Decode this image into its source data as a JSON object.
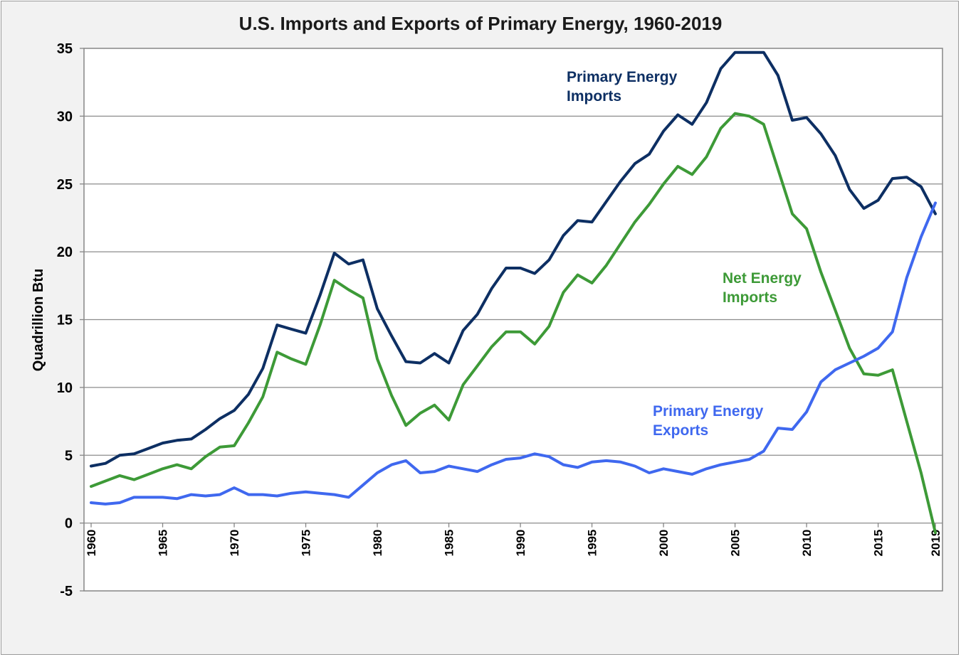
{
  "chart_data": {
    "type": "line",
    "title": "U.S. Imports and Exports of Primary Energy, 1960-2019",
    "xlabel": "",
    "ylabel": "Quadrillion Btu",
    "ylim": [
      -5,
      35
    ],
    "yticks": [
      "-5",
      "0",
      "5",
      "10",
      "15",
      "20",
      "25",
      "30",
      "35"
    ],
    "xlim": [
      1960,
      2019
    ],
    "xticks": [
      "1960",
      "1965",
      "1970",
      "1975",
      "1980",
      "1985",
      "1990",
      "1995",
      "2000",
      "2005",
      "2010",
      "2015",
      "2019"
    ],
    "grid": true,
    "x": [
      1960,
      1961,
      1962,
      1963,
      1964,
      1965,
      1966,
      1967,
      1968,
      1969,
      1970,
      1971,
      1972,
      1973,
      1974,
      1975,
      1976,
      1977,
      1978,
      1979,
      1980,
      1981,
      1982,
      1983,
      1984,
      1985,
      1986,
      1987,
      1988,
      1989,
      1990,
      1991,
      1992,
      1993,
      1994,
      1995,
      1996,
      1997,
      1998,
      1999,
      2000,
      2001,
      2002,
      2003,
      2004,
      2005,
      2006,
      2007,
      2008,
      2009,
      2010,
      2011,
      2012,
      2013,
      2014,
      2015,
      2016,
      2017,
      2018,
      2019
    ],
    "series": [
      {
        "name": "Primary Energy Imports",
        "label_lines": [
          "Primary Energy",
          "Imports"
        ],
        "color": "#0d2f63",
        "values": [
          4.2,
          4.4,
          5.0,
          5.1,
          5.5,
          5.9,
          6.1,
          6.2,
          6.9,
          7.7,
          8.3,
          9.5,
          11.4,
          14.6,
          14.3,
          14.0,
          16.8,
          19.9,
          19.1,
          19.4,
          15.8,
          13.8,
          11.9,
          11.8,
          12.5,
          11.8,
          14.2,
          15.4,
          17.3,
          18.8,
          18.8,
          18.4,
          19.4,
          21.2,
          22.3,
          22.2,
          23.7,
          25.2,
          26.5,
          27.2,
          28.9,
          30.1,
          29.4,
          31.0,
          33.5,
          34.7,
          34.7,
          34.7,
          33.0,
          29.7,
          29.9,
          28.7,
          27.1,
          24.6,
          23.2,
          23.8,
          25.4,
          25.5,
          24.8,
          22.8
        ]
      },
      {
        "name": "Net Energy Imports",
        "label_lines": [
          "Net Energy",
          "Imports"
        ],
        "color": "#3d9a37",
        "values": [
          2.7,
          3.1,
          3.5,
          3.2,
          3.6,
          4.0,
          4.3,
          4.0,
          4.9,
          5.6,
          5.7,
          7.4,
          9.3,
          12.6,
          12.1,
          11.7,
          14.6,
          17.9,
          17.2,
          16.6,
          12.1,
          9.4,
          7.2,
          8.1,
          8.7,
          7.6,
          10.2,
          11.6,
          13.0,
          14.1,
          14.1,
          13.2,
          14.5,
          17.0,
          18.3,
          17.7,
          19.0,
          20.6,
          22.2,
          23.5,
          25.0,
          26.3,
          25.7,
          27.0,
          29.1,
          30.2,
          30.0,
          29.4,
          26.1,
          22.8,
          21.7,
          18.5,
          15.7,
          12.9,
          11.0,
          10.9,
          11.3,
          7.5,
          3.7,
          -0.7
        ]
      },
      {
        "name": "Primary Energy Exports",
        "label_lines": [
          "Primary Energy",
          "Exports"
        ],
        "color": "#3f68ef",
        "values": [
          1.5,
          1.4,
          1.5,
          1.9,
          1.9,
          1.9,
          1.8,
          2.1,
          2.0,
          2.1,
          2.6,
          2.1,
          2.1,
          2.0,
          2.2,
          2.3,
          2.2,
          2.1,
          1.9,
          2.8,
          3.7,
          4.3,
          4.6,
          3.7,
          3.8,
          4.2,
          4.0,
          3.8,
          4.3,
          4.7,
          4.8,
          5.1,
          4.9,
          4.3,
          4.1,
          4.5,
          4.6,
          4.5,
          4.2,
          3.7,
          4.0,
          3.8,
          3.6,
          4.0,
          4.3,
          4.5,
          4.7,
          5.3,
          7.0,
          6.9,
          8.2,
          10.4,
          11.3,
          11.8,
          12.3,
          12.9,
          14.1,
          18.1,
          21.1,
          23.6
        ]
      }
    ]
  }
}
